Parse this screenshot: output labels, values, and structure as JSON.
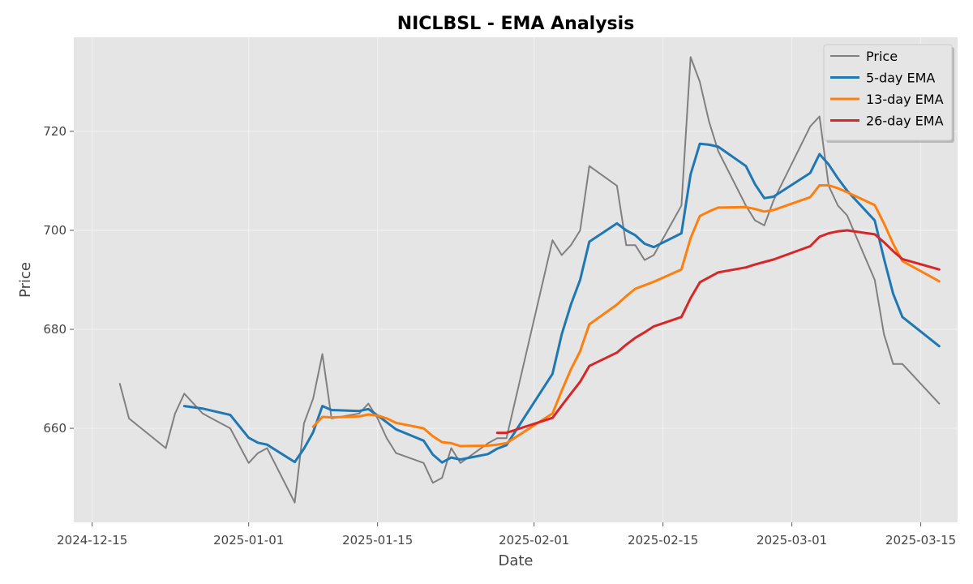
{
  "chart_data": {
    "type": "line",
    "title": "NICLBSL - EMA Analysis",
    "xlabel": "Date",
    "ylabel": "Price",
    "xlim": [
      "2024-12-13",
      "2025-03-19"
    ],
    "ylim": [
      641.0,
      739.0
    ],
    "x_ticks": [
      "2024-12-15",
      "2025-01-01",
      "2025-01-15",
      "2025-02-01",
      "2025-02-15",
      "2025-03-01",
      "2025-03-15"
    ],
    "y_ticks": [
      660,
      680,
      700,
      720
    ],
    "grid": true,
    "legend_position": "top-right",
    "series": [
      {
        "name": "Price",
        "color": "#808080",
        "points": [
          [
            "2024-12-18",
            669
          ],
          [
            "2024-12-19",
            662
          ],
          [
            "2024-12-23",
            656
          ],
          [
            "2024-12-24",
            663
          ],
          [
            "2024-12-25",
            667
          ],
          [
            "2024-12-27",
            663
          ],
          [
            "2024-12-30",
            660
          ],
          [
            "2025-01-01",
            653
          ],
          [
            "2025-01-02",
            655
          ],
          [
            "2025-01-03",
            656
          ],
          [
            "2025-01-06",
            645
          ],
          [
            "2025-01-07",
            661
          ],
          [
            "2025-01-08",
            666
          ],
          [
            "2025-01-09",
            675
          ],
          [
            "2025-01-10",
            662
          ],
          [
            "2025-01-13",
            663
          ],
          [
            "2025-01-14",
            665
          ],
          [
            "2025-01-15",
            662
          ],
          [
            "2025-01-16",
            658
          ],
          [
            "2025-01-17",
            655
          ],
          [
            "2025-01-20",
            653
          ],
          [
            "2025-01-21",
            649
          ],
          [
            "2025-01-22",
            650
          ],
          [
            "2025-01-23",
            656
          ],
          [
            "2025-01-24",
            653
          ],
          [
            "2025-01-27",
            657
          ],
          [
            "2025-01-28",
            658
          ],
          [
            "2025-01-29",
            658
          ],
          [
            "2025-02-03",
            698
          ],
          [
            "2025-02-04",
            695
          ],
          [
            "2025-02-05",
            697
          ],
          [
            "2025-02-06",
            700
          ],
          [
            "2025-02-07",
            713
          ],
          [
            "2025-02-10",
            709
          ],
          [
            "2025-02-11",
            697
          ],
          [
            "2025-02-12",
            697
          ],
          [
            "2025-02-13",
            694
          ],
          [
            "2025-02-14",
            695
          ],
          [
            "2025-02-17",
            705
          ],
          [
            "2025-02-18",
            735
          ],
          [
            "2025-02-19",
            730
          ],
          [
            "2025-02-20",
            722
          ],
          [
            "2025-02-21",
            716
          ],
          [
            "2025-02-24",
            705
          ],
          [
            "2025-02-25",
            702
          ],
          [
            "2025-02-26",
            701
          ],
          [
            "2025-02-27",
            706
          ],
          [
            "2025-03-03",
            721
          ],
          [
            "2025-03-04",
            723
          ],
          [
            "2025-03-05",
            709
          ],
          [
            "2025-03-06",
            705
          ],
          [
            "2025-03-07",
            703
          ],
          [
            "2025-03-10",
            690
          ],
          [
            "2025-03-11",
            679
          ],
          [
            "2025-03-12",
            673
          ],
          [
            "2025-03-13",
            673
          ],
          [
            "2025-03-17",
            665
          ]
        ]
      },
      {
        "name": "5-day EMA",
        "color": "#1f77b4",
        "points": [
          [
            "2024-12-25",
            664.5
          ],
          [
            "2024-12-27",
            664.0
          ],
          [
            "2024-12-30",
            662.7
          ],
          [
            "2025-01-01",
            658.1
          ],
          [
            "2025-01-02",
            657.1
          ],
          [
            "2025-01-03",
            656.7
          ],
          [
            "2025-01-06",
            653.2
          ],
          [
            "2025-01-07",
            655.9
          ],
          [
            "2025-01-08",
            659.2
          ],
          [
            "2025-01-09",
            664.5
          ],
          [
            "2025-01-10",
            663.7
          ],
          [
            "2025-01-13",
            663.5
          ],
          [
            "2025-01-14",
            663.9
          ],
          [
            "2025-01-15",
            662.6
          ],
          [
            "2025-01-16",
            661.2
          ],
          [
            "2025-01-17",
            659.8
          ],
          [
            "2025-01-20",
            657.5
          ],
          [
            "2025-01-21",
            654.7
          ],
          [
            "2025-01-22",
            653.1
          ],
          [
            "2025-01-23",
            654.1
          ],
          [
            "2025-01-24",
            653.7
          ],
          [
            "2025-01-27",
            654.8
          ],
          [
            "2025-01-28",
            655.9
          ],
          [
            "2025-01-29",
            656.6
          ],
          [
            "2025-02-03",
            671.0
          ],
          [
            "2025-02-04",
            679.0
          ],
          [
            "2025-02-05",
            685.0
          ],
          [
            "2025-02-06",
            690.0
          ],
          [
            "2025-02-07",
            697.7
          ],
          [
            "2025-02-10",
            701.4
          ],
          [
            "2025-02-11",
            700.0
          ],
          [
            "2025-02-12",
            699.0
          ],
          [
            "2025-02-13",
            697.3
          ],
          [
            "2025-02-14",
            696.6
          ],
          [
            "2025-02-17",
            699.4
          ],
          [
            "2025-02-18",
            711.3
          ],
          [
            "2025-02-19",
            717.5
          ],
          [
            "2025-02-20",
            717.3
          ],
          [
            "2025-02-21",
            716.9
          ],
          [
            "2025-02-24",
            713.0
          ],
          [
            "2025-02-25",
            709.3
          ],
          [
            "2025-02-26",
            706.5
          ],
          [
            "2025-02-27",
            706.8
          ],
          [
            "2025-03-03",
            711.6
          ],
          [
            "2025-03-04",
            715.4
          ],
          [
            "2025-03-05",
            713.3
          ],
          [
            "2025-03-06",
            710.5
          ],
          [
            "2025-03-07",
            708.0
          ],
          [
            "2025-03-10",
            702.0
          ],
          [
            "2025-03-11",
            694.3
          ],
          [
            "2025-03-12",
            687.2
          ],
          [
            "2025-03-13",
            682.5
          ],
          [
            "2025-03-17",
            676.6
          ]
        ]
      },
      {
        "name": "13-day EMA",
        "color": "#ff7f0e",
        "points": [
          [
            "2025-01-08",
            660.3
          ],
          [
            "2025-01-09",
            662.3
          ],
          [
            "2025-01-10",
            662.2
          ],
          [
            "2025-01-13",
            662.4
          ],
          [
            "2025-01-14",
            662.8
          ],
          [
            "2025-01-15",
            662.6
          ],
          [
            "2025-01-16",
            662.0
          ],
          [
            "2025-01-17",
            661.1
          ],
          [
            "2025-01-20",
            660.0
          ],
          [
            "2025-01-21",
            658.4
          ],
          [
            "2025-01-22",
            657.2
          ],
          [
            "2025-01-23",
            657.0
          ],
          [
            "2025-01-24",
            656.4
          ],
          [
            "2025-01-27",
            656.5
          ],
          [
            "2025-01-28",
            656.7
          ],
          [
            "2025-01-29",
            657.0
          ],
          [
            "2025-02-03",
            663.0
          ],
          [
            "2025-02-04",
            667.6
          ],
          [
            "2025-02-05",
            671.9
          ],
          [
            "2025-02-06",
            675.6
          ],
          [
            "2025-02-07",
            681.0
          ],
          [
            "2025-02-10",
            685.0
          ],
          [
            "2025-02-11",
            686.7
          ],
          [
            "2025-02-12",
            688.2
          ],
          [
            "2025-02-13",
            688.9
          ],
          [
            "2025-02-14",
            689.6
          ],
          [
            "2025-02-17",
            692.1
          ],
          [
            "2025-02-18",
            698.4
          ],
          [
            "2025-02-19",
            702.9
          ],
          [
            "2025-02-20",
            703.8
          ],
          [
            "2025-02-21",
            704.6
          ],
          [
            "2025-02-24",
            704.7
          ],
          [
            "2025-02-25",
            704.3
          ],
          [
            "2025-02-26",
            703.8
          ],
          [
            "2025-02-27",
            704.1
          ],
          [
            "2025-03-03",
            706.7
          ],
          [
            "2025-03-04",
            709.1
          ],
          [
            "2025-03-05",
            709.1
          ],
          [
            "2025-03-06",
            708.5
          ],
          [
            "2025-03-07",
            707.7
          ],
          [
            "2025-03-10",
            705.1
          ],
          [
            "2025-03-11",
            701.4
          ],
          [
            "2025-03-12",
            697.3
          ],
          [
            "2025-03-13",
            693.8
          ],
          [
            "2025-03-17",
            689.7
          ]
        ]
      },
      {
        "name": "26-day EMA",
        "color": "#d62728",
        "points": [
          [
            "2025-01-28",
            659.1
          ],
          [
            "2025-01-29",
            659.1
          ],
          [
            "2025-02-03",
            662.1
          ],
          [
            "2025-02-04",
            664.6
          ],
          [
            "2025-02-05",
            667.0
          ],
          [
            "2025-02-06",
            669.4
          ],
          [
            "2025-02-07",
            672.6
          ],
          [
            "2025-02-10",
            675.3
          ],
          [
            "2025-02-11",
            676.9
          ],
          [
            "2025-02-12",
            678.3
          ],
          [
            "2025-02-13",
            679.4
          ],
          [
            "2025-02-14",
            680.6
          ],
          [
            "2025-02-17",
            682.5
          ],
          [
            "2025-02-18",
            686.3
          ],
          [
            "2025-02-19",
            689.5
          ],
          [
            "2025-02-20",
            690.5
          ],
          [
            "2025-02-21",
            691.5
          ],
          [
            "2025-02-24",
            692.5
          ],
          [
            "2025-02-25",
            693.1
          ],
          [
            "2025-02-26",
            693.6
          ],
          [
            "2025-02-27",
            694.1
          ],
          [
            "2025-03-03",
            696.8
          ],
          [
            "2025-03-04",
            698.7
          ],
          [
            "2025-03-05",
            699.4
          ],
          [
            "2025-03-06",
            699.8
          ],
          [
            "2025-03-07",
            700.0
          ],
          [
            "2025-03-10",
            699.2
          ],
          [
            "2025-03-11",
            697.6
          ],
          [
            "2025-03-12",
            695.8
          ],
          [
            "2025-03-13",
            694.2
          ],
          [
            "2025-03-17",
            692.1
          ]
        ]
      }
    ]
  },
  "colors": {
    "figure_background": "#ffffff",
    "plot_background": "#e5e5e5",
    "grid": "#f2f2f2",
    "legend_background": "#e5e5e5",
    "legend_border": "#cccccc"
  }
}
